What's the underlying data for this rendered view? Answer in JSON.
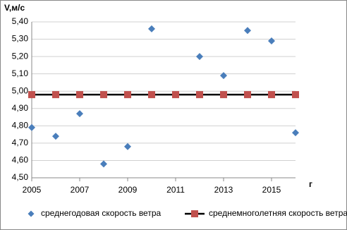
{
  "chart_data": {
    "type": "scatter",
    "y_label": "V,м/с",
    "x_label": "г",
    "x": [
      2005,
      2006,
      2007,
      2008,
      2009,
      2010,
      2011,
      2012,
      2013,
      2014,
      2015,
      2016
    ],
    "series": [
      {
        "name": "среднегодовая скорость ветра",
        "type": "scatter",
        "color": "#4a7ebb",
        "values": [
          4.79,
          4.74,
          4.87,
          4.58,
          4.68,
          5.36,
          4.98,
          5.2,
          5.09,
          5.35,
          5.29,
          4.76
        ]
      },
      {
        "name": "среднемноголетняя скорость ветра",
        "type": "line",
        "color": "#c0504d",
        "line_color": "#000000",
        "values": [
          4.98,
          4.98,
          4.98,
          4.98,
          4.98,
          4.98,
          4.98,
          4.98,
          4.98,
          4.98,
          4.98,
          4.98
        ]
      }
    ],
    "xlim": [
      2005,
      2016
    ],
    "xticks": [
      2005,
      2007,
      2009,
      2011,
      2013,
      2015
    ],
    "ylim": [
      4.5,
      5.4
    ],
    "yticks": [
      {
        "value": 4.5,
        "label": "4,50"
      },
      {
        "value": 4.6,
        "label": "4,60"
      },
      {
        "value": 4.7,
        "label": "4,70"
      },
      {
        "value": 4.8,
        "label": "4,80"
      },
      {
        "value": 4.9,
        "label": "4,90"
      },
      {
        "value": 5.0,
        "label": "5,00"
      },
      {
        "value": 5.1,
        "label": "5,10"
      },
      {
        "value": 5.2,
        "label": "5,20"
      },
      {
        "value": 5.3,
        "label": "5,30"
      },
      {
        "value": 5.4,
        "label": "5,40"
      }
    ],
    "grid": true
  }
}
